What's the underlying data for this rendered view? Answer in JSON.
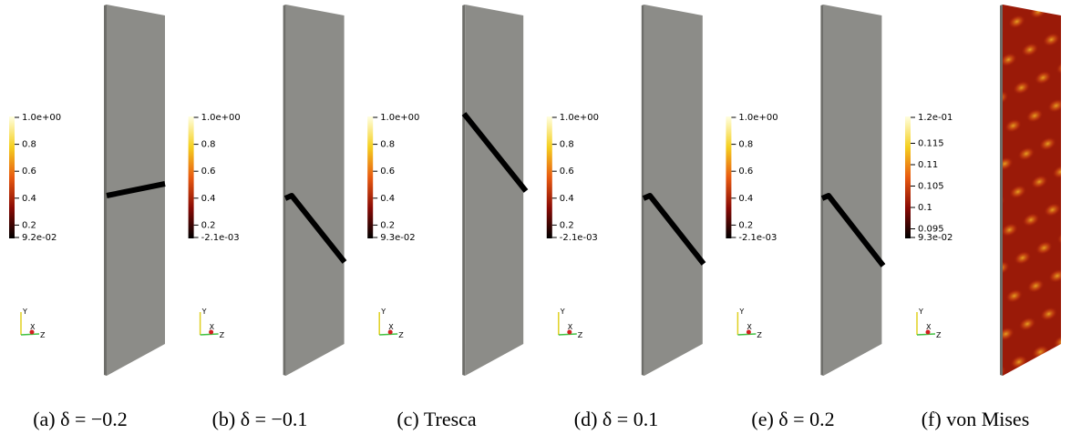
{
  "triad_labels": {
    "y": "Y",
    "x": "X",
    "z": "Z"
  },
  "panels": [
    {
      "caption": "(a) δ = −0.2",
      "colorbar_ticks": [
        "1.0e+00",
        "0.8",
        "0.6",
        "0.4",
        "0.2",
        "9.2e-02"
      ]
    },
    {
      "caption": "(b) δ = −0.1",
      "colorbar_ticks": [
        "1.0e+00",
        "0.8",
        "0.6",
        "0.4",
        "0.2",
        "-2.1e-03"
      ]
    },
    {
      "caption": "(c) Tresca",
      "colorbar_ticks": [
        "1.0e+00",
        "0.8",
        "0.6",
        "0.4",
        "0.2",
        "9.3e-02"
      ]
    },
    {
      "caption": "(d) δ = 0.1",
      "colorbar_ticks": [
        "1.0e+00",
        "0.8",
        "0.6",
        "0.4",
        "0.2",
        "-2.1e-03"
      ]
    },
    {
      "caption": "(e) δ = 0.2",
      "colorbar_ticks": [
        "1.0e+00",
        "0.8",
        "0.6",
        "0.4",
        "0.2",
        "-2.1e-03"
      ]
    },
    {
      "caption": "(f) von Mises",
      "colorbar_ticks": [
        "1.2e-01",
        "0.115",
        "0.11",
        "0.105",
        "0.1",
        "0.095",
        "9.3e-02"
      ]
    }
  ]
}
